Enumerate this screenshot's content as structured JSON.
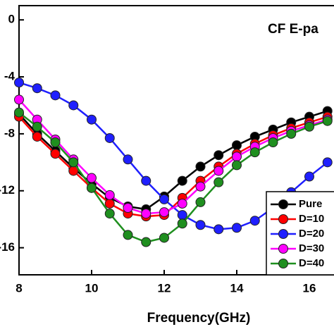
{
  "chart_data": {
    "type": "line",
    "title": "CF E-pa",
    "xlabel": "Frequency(GHz)",
    "x": [
      8,
      8.5,
      9,
      9.5,
      10,
      10.5,
      11,
      11.5,
      12,
      12.5,
      13,
      13.5,
      14,
      14.5,
      15,
      15.5,
      16,
      16.5
    ],
    "series": [
      {
        "name": "Pure",
        "color": "#000000",
        "values": [
          -6.6,
          -8.0,
          -9.2,
          -10.4,
          -11.5,
          -12.5,
          -13.1,
          -13.3,
          -12.4,
          -11.3,
          -10.3,
          -9.5,
          -8.8,
          -8.2,
          -7.7,
          -7.2,
          -6.8,
          -6.4
        ]
      },
      {
        "name": "D=10",
        "color": "#ff0000",
        "values": [
          -6.8,
          -8.2,
          -9.4,
          -10.6,
          -11.8,
          -12.9,
          -13.6,
          -13.8,
          -13.7,
          -12.5,
          -11.3,
          -10.3,
          -9.4,
          -8.7,
          -8.1,
          -7.6,
          -7.2,
          -6.8
        ]
      },
      {
        "name": "D=20",
        "color": "#1f1fff",
        "values": [
          -4.4,
          -4.8,
          -5.3,
          -6.0,
          -7.0,
          -8.3,
          -9.8,
          -11.3,
          -12.6,
          -13.7,
          -14.4,
          -14.7,
          -14.6,
          -14.1,
          -13.2,
          -12.1,
          -11.0,
          -10.0
        ]
      },
      {
        "name": "D=30",
        "color": "#ff00ff",
        "values": [
          -5.6,
          -7.0,
          -8.4,
          -9.8,
          -11.1,
          -12.3,
          -13.2,
          -13.6,
          -13.5,
          -12.9,
          -11.7,
          -10.6,
          -9.6,
          -8.9,
          -8.3,
          -7.8,
          -7.4,
          -7.0
        ]
      },
      {
        "name": "D=40",
        "color": "#1f8f1f",
        "values": [
          -6.5,
          -7.5,
          -8.6,
          -10.0,
          -11.8,
          -13.6,
          -15.1,
          -15.6,
          -15.3,
          -14.3,
          -12.8,
          -11.4,
          -10.2,
          -9.3,
          -8.6,
          -8.0,
          -7.5,
          -7.1
        ]
      }
    ],
    "xlim": [
      8,
      16.68
    ],
    "ylim": [
      -17.9,
      1
    ],
    "xticks": [
      8,
      10,
      12,
      14,
      16
    ],
    "yticks": [
      0,
      -4,
      -8,
      -12,
      -16
    ]
  }
}
